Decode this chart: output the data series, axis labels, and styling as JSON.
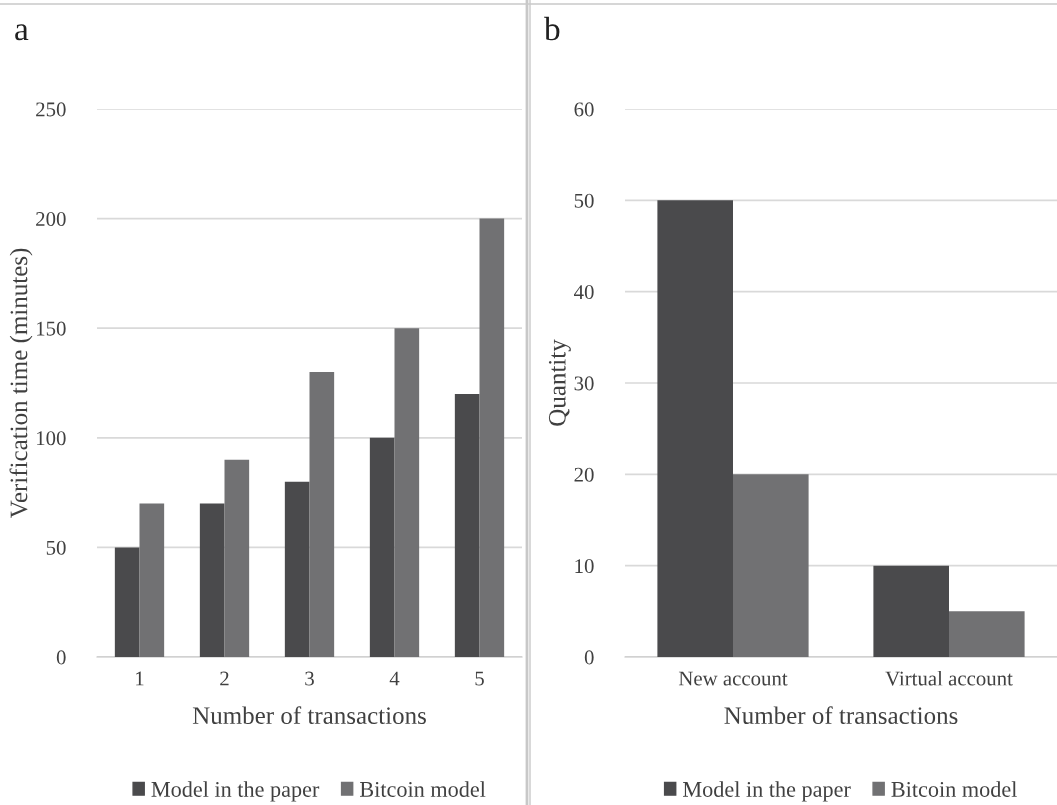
{
  "chart_data": [
    {
      "type": "bar",
      "title": "a",
      "xlabel": "Number of transactions",
      "ylabel": "Verification time (minutes)",
      "categories": [
        "1",
        "2",
        "3",
        "4",
        "5"
      ],
      "series": [
        {
          "name": "Model in the paper",
          "color": "#4a4a4c",
          "values": [
            50,
            70,
            80,
            100,
            120
          ]
        },
        {
          "name": "Bitcoin model",
          "color": "#717173",
          "values": [
            70,
            90,
            130,
            150,
            200
          ]
        }
      ],
      "ylim": [
        0,
        250
      ],
      "yticks": [
        0,
        50,
        100,
        150,
        200,
        250
      ],
      "grid": "y",
      "legend": "bottom"
    },
    {
      "type": "bar",
      "title": "b",
      "xlabel": "Number of transactions",
      "ylabel": "Quantity",
      "categories": [
        "New account",
        "Virtual account"
      ],
      "series": [
        {
          "name": "Model in the paper",
          "color": "#4a4a4c",
          "values": [
            50,
            10
          ]
        },
        {
          "name": "Bitcoin model",
          "color": "#717173",
          "values": [
            20,
            5
          ]
        }
      ],
      "ylim": [
        0,
        60
      ],
      "yticks": [
        0,
        10,
        20,
        30,
        40,
        50,
        60
      ],
      "grid": "y",
      "legend": "bottom"
    }
  ]
}
